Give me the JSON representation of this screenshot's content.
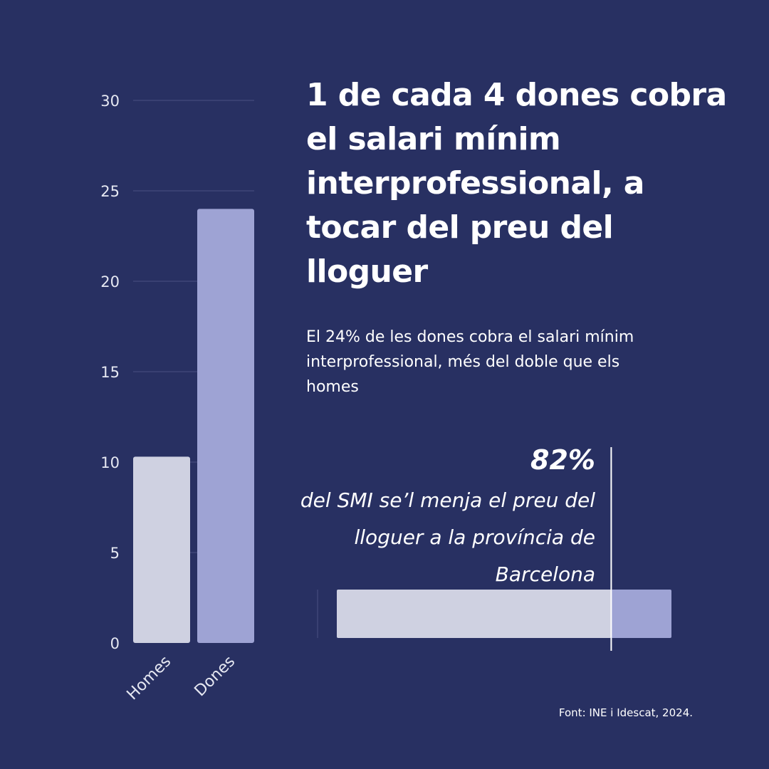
{
  "colors": {
    "background": "#283062",
    "grid": "#4a5183",
    "axis_text": "#e6e8f2",
    "bar_light": "#cfd1e1",
    "bar_accent": "#9ea3d4",
    "marker": "#ffffff"
  },
  "headline": {
    "title": "1 de cada 4 dones cobra el salari mínim interprofessional, a tocar del preu del lloguer",
    "subtitle": "El 24% de les dones cobra el salari mínim interprofessional, més del doble que els homes"
  },
  "rent_stat": {
    "value": "82%",
    "caption": "del SMI se’l menja el preu del lloguer a la província de Barcelona"
  },
  "source": "Font: INE i Idescat, 2024.",
  "chart_data": [
    {
      "type": "bar",
      "categories": [
        "Homes",
        "Dones"
      ],
      "values": [
        10.3,
        24
      ],
      "ylim": [
        0,
        30
      ],
      "yticks": [
        0,
        5,
        10,
        15,
        20,
        25,
        30
      ],
      "grid": true
    },
    {
      "type": "bar",
      "orientation": "horizontal",
      "values": [
        82,
        18
      ],
      "unit": "%",
      "marker_value": 82
    }
  ]
}
